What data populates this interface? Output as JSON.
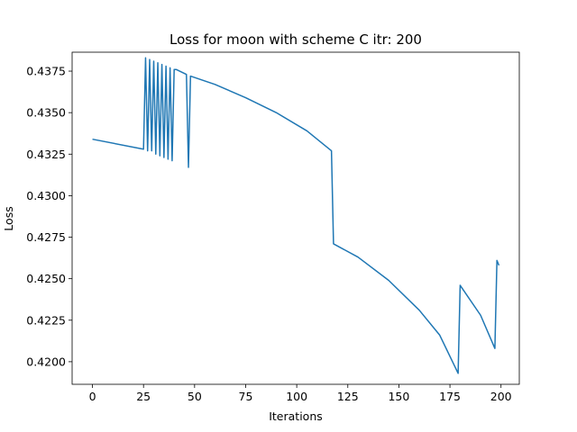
{
  "chart_data": {
    "type": "line",
    "title": "Loss for moon with scheme C itr: 200",
    "xlabel": "Iterations",
    "ylabel": "Loss",
    "xlim": [
      -9.95,
      208.95
    ],
    "ylim": [
      0.41864,
      0.43864
    ],
    "xticks": [
      0,
      25,
      50,
      75,
      100,
      125,
      150,
      175,
      200
    ],
    "xtick_labels": [
      "0",
      "25",
      "50",
      "75",
      "100",
      "125",
      "150",
      "175",
      "200"
    ],
    "yticks": [
      0.42,
      0.4225,
      0.425,
      0.4275,
      0.43,
      0.4325,
      0.435,
      0.4375
    ],
    "ytick_labels": [
      "0.4200",
      "0.4225",
      "0.4250",
      "0.4275",
      "0.4300",
      "0.4325",
      "0.4350",
      "0.4375"
    ],
    "grid": false,
    "series": [
      {
        "color": "#1f77b4",
        "x": [
          0,
          25,
          26,
          27,
          28,
          29,
          30,
          31,
          32,
          33,
          34,
          35,
          36,
          37,
          38,
          39,
          40,
          41,
          46,
          47,
          48,
          60,
          75,
          90,
          105,
          117,
          118,
          130,
          145,
          160,
          170,
          179,
          180,
          190,
          197,
          198,
          199
        ],
        "y": [
          0.4334,
          0.4328,
          0.4383,
          0.4327,
          0.4382,
          0.4327,
          0.4381,
          0.4325,
          0.438,
          0.4324,
          0.4379,
          0.4323,
          0.4378,
          0.4322,
          0.4377,
          0.4321,
          0.4376,
          0.4376,
          0.4373,
          0.4317,
          0.4372,
          0.4367,
          0.4359,
          0.435,
          0.4339,
          0.4327,
          0.4271,
          0.4263,
          0.4249,
          0.4231,
          0.4216,
          0.4193,
          0.4246,
          0.4228,
          0.4208,
          0.4261,
          0.4258
        ]
      }
    ]
  }
}
